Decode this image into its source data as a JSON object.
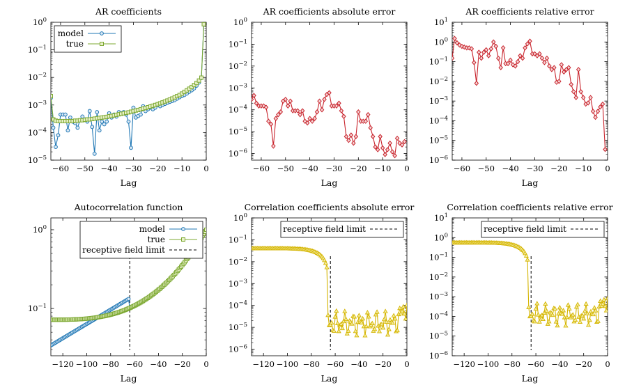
{
  "colors": {
    "model": "#1f77b4",
    "true": "#7ca832",
    "abs_ar": "#c8232c",
    "corr_err": "#d4b400"
  },
  "chart_data": [
    {
      "id": "ar-coefficients",
      "type": "line",
      "title": "AR coefficients",
      "xlabel": "Lag",
      "ylabel": "",
      "xlim": [
        -64,
        0
      ],
      "xticks": [
        -60,
        -50,
        -40,
        -30,
        -20,
        -10,
        0
      ],
      "ylog": true,
      "ylim_exp": [
        -5,
        0
      ],
      "legend": {
        "position": "top-left",
        "entries": [
          "model",
          "true"
        ]
      },
      "series": [
        {
          "name": "model",
          "color": "#1f77b4",
          "marker": "circle",
          "x": [
            -64,
            -63,
            -62,
            -61,
            -60,
            -59,
            -58,
            -57,
            -56,
            -55,
            -54,
            -53,
            -52,
            -51,
            -50,
            -49,
            -48,
            -47,
            -46,
            -45,
            -44,
            -43,
            -42,
            -41,
            -40,
            -39,
            -38,
            -37,
            -36,
            -35,
            -34,
            -33,
            -32,
            -31,
            -30,
            -29,
            -28,
            -27,
            -26,
            -25,
            -24,
            -23,
            -22,
            -21,
            -20,
            -19,
            -18,
            -17,
            -16,
            -15,
            -14,
            -13,
            -12,
            -11,
            -10,
            -9,
            -8,
            -7,
            -6,
            -5,
            -4,
            -3,
            -2,
            -1
          ],
          "y": [
            0.0018,
            0.00015,
            3e-05,
            8e-05,
            0.00045,
            0.00045,
            0.00045,
            0.00012,
            0.00035,
            0.00025,
            0.00022,
            0.00015,
            0.00028,
            0.00038,
            0.0003,
            0.00025,
            0.0006,
            0.00016,
            1.7e-05,
            0.00055,
            0.00012,
            0.00025,
            0.0002,
            0.00025,
            0.0005,
            0.00035,
            0.00045,
            0.00038,
            0.00055,
            0.0005,
            0.00055,
            0.00045,
            0.00025,
            2.8e-05,
            0.0008,
            0.00035,
            0.0004,
            0.00045,
            0.0009,
            0.0006,
            0.0007,
            0.0008,
            0.0007,
            0.0008,
            0.001,
            0.0009,
            0.001,
            0.0011,
            0.0012,
            0.0013,
            0.0014,
            0.0015,
            0.0017,
            0.0019,
            0.0021,
            0.0023,
            0.0026,
            0.003,
            0.0034,
            0.004,
            0.005,
            0.0065,
            0.0095,
            0.85
          ]
        },
        {
          "name": "true",
          "color": "#7ca832",
          "marker": "square",
          "x": [
            -64,
            -63,
            -62,
            -61,
            -60,
            -59,
            -58,
            -57,
            -56,
            -55,
            -54,
            -53,
            -52,
            -51,
            -50,
            -49,
            -48,
            -47,
            -46,
            -45,
            -44,
            -43,
            -42,
            -41,
            -40,
            -39,
            -38,
            -37,
            -36,
            -35,
            -34,
            -33,
            -32,
            -31,
            -30,
            -29,
            -28,
            -27,
            -26,
            -25,
            -24,
            -23,
            -22,
            -21,
            -20,
            -19,
            -18,
            -17,
            -16,
            -15,
            -14,
            -13,
            -12,
            -11,
            -10,
            -9,
            -8,
            -7,
            -6,
            -5,
            -4,
            -3,
            -2,
            -1
          ],
          "y": [
            0.0021,
            0.0003,
            0.00027,
            0.00026,
            0.00026,
            0.00026,
            0.00026,
            0.00026,
            0.00026,
            0.00026,
            0.00027,
            0.00027,
            0.00028,
            0.00028,
            0.00029,
            0.0003,
            0.0003,
            0.00031,
            0.00032,
            0.00033,
            0.00034,
            0.00035,
            0.00036,
            0.00037,
            0.00039,
            0.0004,
            0.00042,
            0.00044,
            0.00046,
            0.00048,
            0.0005,
            0.00052,
            0.00054,
            0.00057,
            0.0006,
            0.00063,
            0.00066,
            0.0007,
            0.00074,
            0.00078,
            0.00083,
            0.00088,
            0.00094,
            0.001,
            0.00107,
            0.00115,
            0.00124,
            0.00134,
            0.00145,
            0.00158,
            0.00172,
            0.0019,
            0.0021,
            0.0023,
            0.0026,
            0.003,
            0.0034,
            0.0039,
            0.0045,
            0.0053,
            0.0063,
            0.0077,
            0.0098,
            0.85
          ]
        }
      ]
    },
    {
      "id": "ar-abs-error",
      "type": "line",
      "title": "AR coefficients absolute error",
      "xlabel": "Lag",
      "xlim": [
        -64,
        0
      ],
      "xticks": [
        -60,
        -50,
        -40,
        -30,
        -20,
        -10,
        0
      ],
      "ylog": true,
      "ylim_exp": [
        -6.3,
        0
      ],
      "series": [
        {
          "name": "",
          "color": "#c8232c",
          "marker": "diamond",
          "x": [
            -64,
            -63,
            -62,
            -61,
            -60,
            -59,
            -58,
            -57,
            -56,
            -55,
            -54,
            -53,
            -52,
            -51,
            -50,
            -49,
            -48,
            -47,
            -46,
            -45,
            -44,
            -43,
            -42,
            -41,
            -40,
            -39,
            -38,
            -37,
            -36,
            -35,
            -34,
            -33,
            -32,
            -31,
            -30,
            -29,
            -28,
            -27,
            -26,
            -25,
            -24,
            -23,
            -22,
            -21,
            -20,
            -19,
            -18,
            -17,
            -16,
            -15,
            -14,
            -13,
            -12,
            -11,
            -10,
            -9,
            -8,
            -7,
            -6,
            -5,
            -4,
            -3,
            -2,
            -1
          ],
          "y": [
            0.0003,
            0.00045,
            0.0002,
            0.00015,
            0.00015,
            0.00015,
            0.00013,
            3e-05,
            2.2e-05,
            2.2e-06,
            4e-05,
            6e-05,
            8e-05,
            0.00025,
            0.0003,
            0.00015,
            0.00025,
            9e-05,
            9e-05,
            9e-05,
            6e-05,
            9e-05,
            3e-05,
            2.5e-05,
            4e-05,
            3e-05,
            4e-05,
            8e-05,
            0.00025,
            0.0001,
            0.0003,
            0.0005,
            0.0006,
            0.00015,
            0.00015,
            0.00015,
            0.0002,
            9e-05,
            5e-05,
            6e-06,
            4e-06,
            7e-06,
            3e-06,
            6e-06,
            8e-05,
            3e-05,
            3e-05,
            3e-05,
            6e-05,
            1.5e-05,
            6e-06,
            2e-06,
            1.5e-06,
            6e-06,
            1.8e-06,
            9e-07,
            1.5e-06,
            3e-06,
            1.2e-06,
            8e-07,
            5e-06,
            3e-06,
            2.5e-06,
            3.5e-06
          ]
        }
      ]
    },
    {
      "id": "ar-rel-error",
      "type": "line",
      "title": "AR coefficients relative error",
      "xlabel": "Lag",
      "xlim": [
        -64,
        0
      ],
      "xticks": [
        -60,
        -50,
        -40,
        -30,
        -20,
        -10,
        0
      ],
      "ylog": true,
      "ylim_exp": [
        -6,
        1
      ],
      "series": [
        {
          "name": "",
          "color": "#c8232c",
          "marker": "diamond",
          "x": [
            -64,
            -63,
            -62,
            -61,
            -60,
            -59,
            -58,
            -57,
            -56,
            -55,
            -54,
            -53,
            -52,
            -51,
            -50,
            -49,
            -48,
            -47,
            -46,
            -45,
            -44,
            -43,
            -42,
            -41,
            -40,
            -39,
            -38,
            -37,
            -36,
            -35,
            -34,
            -33,
            -32,
            -31,
            -30,
            -29,
            -28,
            -27,
            -26,
            -25,
            -24,
            -23,
            -22,
            -21,
            -20,
            -19,
            -18,
            -17,
            -16,
            -15,
            -14,
            -13,
            -12,
            -11,
            -10,
            -9,
            -8,
            -7,
            -6,
            -5,
            -4,
            -3,
            -2,
            -1
          ],
          "y": [
            0.15,
            1.5,
            0.9,
            0.7,
            0.6,
            0.55,
            0.5,
            0.5,
            0.45,
            0.09,
            0.008,
            0.3,
            0.15,
            0.3,
            0.4,
            0.2,
            0.45,
            1.0,
            0.6,
            0.15,
            0.05,
            0.5,
            0.08,
            0.08,
            0.12,
            0.07,
            0.06,
            0.1,
            0.2,
            0.15,
            0.5,
            0.8,
            1.1,
            0.25,
            0.25,
            0.2,
            0.25,
            0.15,
            0.09,
            0.15,
            0.06,
            0.04,
            0.05,
            0.009,
            0.01,
            0.07,
            0.03,
            0.04,
            0.05,
            0.007,
            0.003,
            0.0015,
            0.04,
            0.003,
            0.0015,
            0.0007,
            0.0008,
            0.0015,
            0.0003,
            0.00015,
            0.0003,
            0.0005,
            0.0007,
            3.5e-06
          ]
        }
      ]
    },
    {
      "id": "autocorrelation",
      "type": "line",
      "title": "Autocorrelation function",
      "xlabel": "Lag",
      "xlim": [
        -130,
        0
      ],
      "xticks": [
        -120,
        -100,
        -80,
        -60,
        -40,
        -20,
        0
      ],
      "ylog": true,
      "ylim_exp": [
        -1.6,
        0.15
      ],
      "yticks_exp": [
        -1,
        0
      ],
      "legend": {
        "position": "top-right",
        "entries": [
          "model",
          "true",
          "receptive field limit"
        ]
      },
      "vline": -64,
      "series": [
        {
          "name": "model",
          "color": "#1f77b4",
          "marker": "circle",
          "model": "acf_model"
        },
        {
          "name": "true",
          "color": "#7ca832",
          "marker": "square",
          "model": "acf_true"
        }
      ]
    },
    {
      "id": "corr-abs-error",
      "type": "line",
      "title": "Correlation coefficients absolute error",
      "xlabel": "Lag",
      "xlim": [
        -130,
        0
      ],
      "xticks": [
        -120,
        -100,
        -80,
        -60,
        -40,
        -20,
        0
      ],
      "ylog": true,
      "ylim_exp": [
        -6.3,
        0
      ],
      "legend": {
        "position": "top-right",
        "entries": [
          "receptive field limit"
        ]
      },
      "vline": -64,
      "series": [
        {
          "name": "",
          "color": "#d4b400",
          "marker": "triangle",
          "model": "corr_abs"
        }
      ]
    },
    {
      "id": "corr-rel-error",
      "type": "line",
      "title": "Correlation coefficients relative error",
      "xlabel": "Lag",
      "xlim": [
        -130,
        0
      ],
      "xticks": [
        -120,
        -100,
        -80,
        -60,
        -40,
        -20,
        0
      ],
      "ylog": true,
      "ylim_exp": [
        -6,
        1
      ],
      "legend": {
        "position": "top-right",
        "entries": [
          "receptive field limit"
        ]
      },
      "vline": -64,
      "series": [
        {
          "name": "",
          "color": "#d4b400",
          "marker": "triangle",
          "model": "corr_rel"
        }
      ]
    }
  ]
}
